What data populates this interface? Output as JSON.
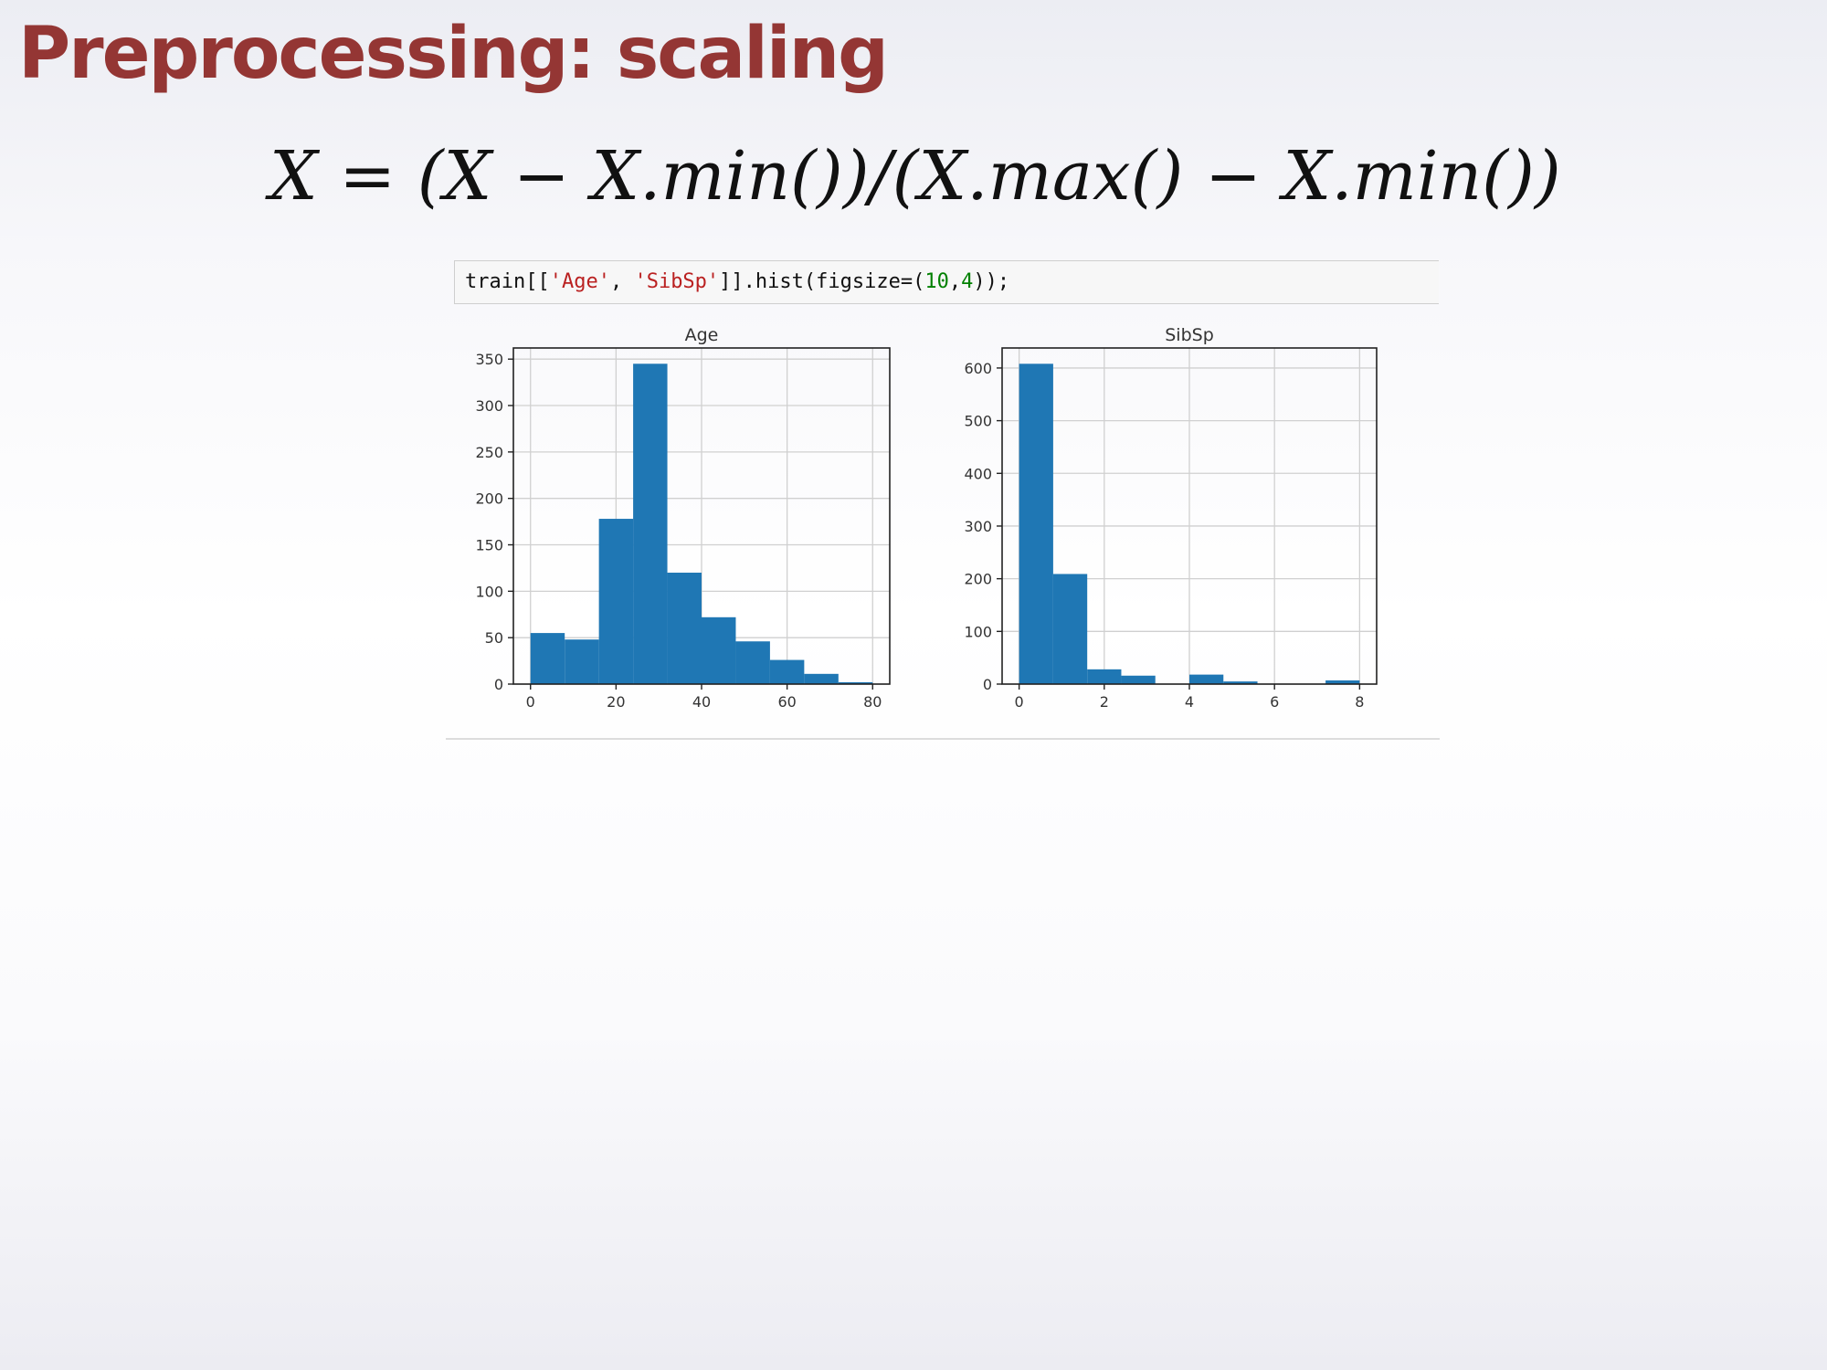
{
  "slide": {
    "title": "Preprocessing: scaling",
    "formula": "X = (X − X.min())/(X.max() − X.min())"
  },
  "code_cell": {
    "tokens": [
      {
        "text": "train[[",
        "kind": "plain"
      },
      {
        "text": "'Age'",
        "kind": "str"
      },
      {
        "text": ", ",
        "kind": "plain"
      },
      {
        "text": "'SibSp'",
        "kind": "str"
      },
      {
        "text": "]].hist(figsize=(",
        "kind": "plain"
      },
      {
        "text": "10",
        "kind": "num"
      },
      {
        "text": ",",
        "kind": "plain"
      },
      {
        "text": "4",
        "kind": "num"
      },
      {
        "text": "));",
        "kind": "plain"
      }
    ]
  },
  "colors": {
    "title": "#943634",
    "bar": "#1f77b4",
    "string_token": "#ba2121",
    "number_token": "#008000"
  },
  "chart_data": [
    {
      "type": "bar",
      "title": "Age",
      "xlabel": "",
      "ylabel": "",
      "bin_edges": [
        0,
        8,
        16,
        24,
        32,
        40,
        48,
        56,
        64,
        72,
        80
      ],
      "values": [
        55,
        48,
        178,
        345,
        120,
        72,
        46,
        26,
        11,
        2
      ],
      "xlim": [
        -4,
        84
      ],
      "ylim": [
        0,
        362
      ],
      "xticks": [
        0,
        20,
        40,
        60,
        80
      ],
      "yticks": [
        0,
        50,
        100,
        150,
        200,
        250,
        300,
        350
      ],
      "grid": true
    },
    {
      "type": "bar",
      "title": "SibSp",
      "xlabel": "",
      "ylabel": "",
      "bin_edges": [
        0,
        0.8,
        1.6,
        2.4,
        3.2,
        4.0,
        4.8,
        5.6,
        6.4,
        7.2,
        8.0
      ],
      "values": [
        608,
        209,
        28,
        16,
        0,
        18,
        5,
        0,
        0,
        7
      ],
      "xlim": [
        -0.4,
        8.4
      ],
      "ylim": [
        0,
        638
      ],
      "xticks": [
        0,
        2,
        4,
        6,
        8
      ],
      "yticks": [
        0,
        100,
        200,
        300,
        400,
        500,
        600
      ],
      "grid": true
    }
  ]
}
